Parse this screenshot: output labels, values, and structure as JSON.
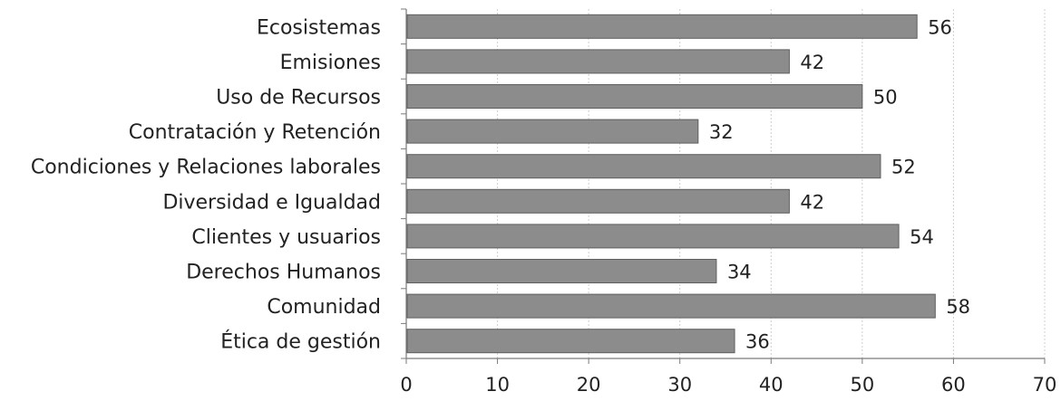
{
  "chart_data": {
    "type": "bar",
    "orientation": "horizontal",
    "categories": [
      "Ecosistemas",
      "Emisiones",
      "Uso de Recursos",
      "Contratación y Retención",
      "Condiciones y Relaciones laborales",
      "Diversidad e Igualdad",
      "Clientes y usuarios",
      "Derechos Humanos",
      "Comunidad",
      "Ética de gestión"
    ],
    "values": [
      56,
      42,
      50,
      32,
      52,
      42,
      54,
      34,
      58,
      36
    ],
    "value_labels": [
      "56",
      "42",
      "50",
      "32",
      "52",
      "42",
      "54",
      "34",
      "58",
      "36"
    ],
    "xlim": [
      0,
      70
    ],
    "xticks": [
      0,
      10,
      20,
      30,
      40,
      50,
      60,
      70
    ],
    "xtick_labels": [
      "0",
      "10",
      "20",
      "30",
      "40",
      "50",
      "60",
      "70"
    ],
    "grid": "vertical",
    "legend": "none",
    "colors": {
      "bar": "#8c8c8c",
      "bar_edge": "#5e5e5e",
      "grid": "#cfcfcf",
      "axis": "#7a7a7a",
      "text": "#222222"
    }
  }
}
